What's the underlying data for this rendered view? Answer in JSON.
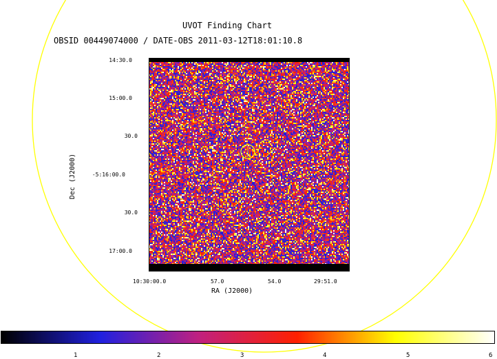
{
  "title": "UVOT Finding Chart",
  "subtitle": "OBSID 00449074000 / DATE-OBS 2011-03-12T18:01:10.8",
  "axes": {
    "xlabel": "RA (J2000)",
    "ylabel": "Dec (J2000)",
    "x_ticks": [
      "10:30:00.0",
      "57.0",
      "54.0",
      "29:51.0"
    ],
    "y_ticks": [
      "14:30.0",
      "15:00.0",
      "30.0",
      "-5:16:00.0",
      "30.0",
      "17:00.0"
    ]
  },
  "colorbar": {
    "ticks": [
      "1",
      "2",
      "3",
      "4",
      "5",
      "6"
    ],
    "colors": [
      "#000000",
      "#2020e0",
      "#c02080",
      "#ff2000",
      "#ffff00",
      "#ffffff"
    ]
  },
  "overlay": {
    "circle_color": "#ffff00",
    "marker": "target-circle"
  }
}
